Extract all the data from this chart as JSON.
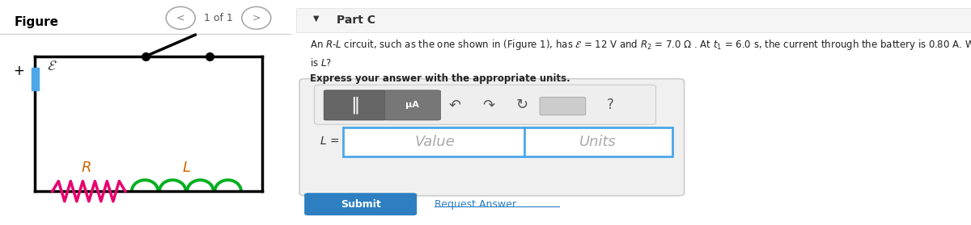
{
  "bg_color": "#ffffff",
  "figure_label": "Figure",
  "figure_nav": "1 of 1",
  "part_label": "Part C",
  "express_label": "Express your answer with the appropriate units.",
  "L_label": "L =",
  "value_placeholder": "Value",
  "units_placeholder": "Units",
  "submit_text": "Submit",
  "request_answer_text": "Request Answer",
  "submit_color": "#2d7fc1",
  "divider_color": "#cccccc",
  "circuit_box_color": "#000000",
  "battery_color": "#4da6e8",
  "resistor_color": "#e8006e",
  "inductor_color": "#00b020",
  "input_border_color": "#4da6e8",
  "panel_border": "#cccccc"
}
